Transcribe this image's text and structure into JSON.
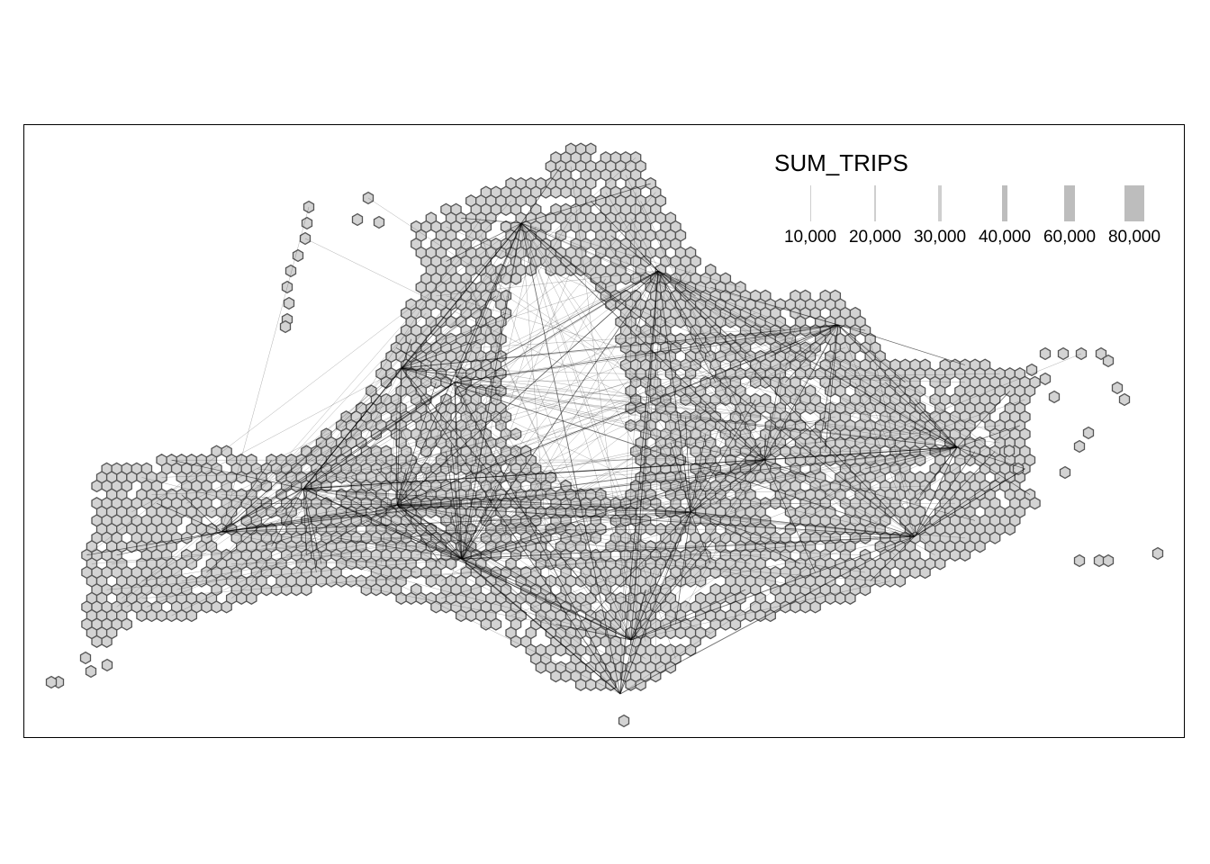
{
  "map": {
    "hex_fill": "#d3d3d3",
    "hex_stroke": "#555555",
    "flow_color": "#000000",
    "legend": {
      "title": "SUM_TRIPS",
      "items": [
        {
          "label": "10,000",
          "value": 10000
        },
        {
          "label": "20,000",
          "value": 20000
        },
        {
          "label": "30,000",
          "value": 30000
        },
        {
          "label": "40,000",
          "value": 40000
        },
        {
          "label": "60,000",
          "value": 60000
        },
        {
          "label": "80,000",
          "value": 80000
        }
      ]
    }
  }
}
